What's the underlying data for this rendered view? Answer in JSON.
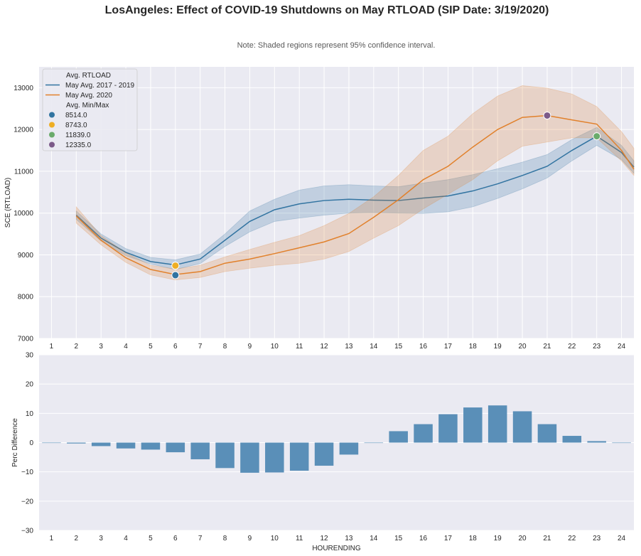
{
  "title": "LosAngeles: Effect of COVID-19 Shutdowns on May RTLOAD (SIP Date: 3/19/2020)",
  "subtitle": "Note: Shaded regions represent 95% confidence interval.",
  "colors": {
    "background": "#eaeaf2",
    "grid": "#ffffff",
    "series_2017_2019": "#3274a1",
    "series_2020": "#e1812c",
    "bars": "#5a8fb8",
    "minmax": [
      "#3274a1",
      "#eeae24",
      "#6aab6b",
      "#7c5a89"
    ]
  },
  "chart_data": [
    {
      "type": "line",
      "title": "",
      "xlabel": "",
      "ylabel": "SCE (RTLOAD)",
      "x_ticks": [
        1,
        2,
        3,
        4,
        5,
        6,
        7,
        8,
        9,
        10,
        11,
        12,
        13,
        14,
        15,
        16,
        17,
        18,
        19,
        20,
        21,
        22,
        23,
        24
      ],
      "y_ticks": [
        7000,
        8000,
        9000,
        10000,
        11000,
        12000,
        13000
      ],
      "xlim": [
        0.5,
        24.5
      ],
      "ylim": [
        7000,
        13500
      ],
      "legend_location": "top-left",
      "legend": {
        "line_title": "Avg. RTLOAD",
        "point_title": "Avg. Min/Max"
      },
      "series": [
        {
          "name": "May Avg. 2017 - 2019",
          "x": [
            2,
            3,
            4,
            5,
            6,
            7,
            8,
            9,
            10,
            11,
            12,
            13,
            14,
            15,
            16,
            17,
            18,
            19,
            20,
            21,
            22,
            23,
            24,
            24.5
          ],
          "values": [
            9950,
            9400,
            9060,
            8840,
            8760,
            8900,
            9350,
            9800,
            10080,
            10220,
            10300,
            10330,
            10310,
            10300,
            10360,
            10410,
            10530,
            10700,
            10900,
            11120,
            11500,
            11840,
            11450,
            11100
          ],
          "ci_lower": [
            9850,
            9330,
            8980,
            8780,
            8650,
            8790,
            9200,
            9550,
            9800,
            9880,
            9950,
            10000,
            10010,
            10000,
            9990,
            10030,
            10150,
            10350,
            10580,
            10840,
            11250,
            11620,
            11280,
            10950
          ],
          "ci_upper": [
            10050,
            9500,
            9150,
            8940,
            8880,
            9020,
            9500,
            10050,
            10330,
            10550,
            10650,
            10680,
            10650,
            10630,
            10720,
            10800,
            10920,
            11060,
            11220,
            11400,
            11760,
            12050,
            11620,
            11250
          ]
        },
        {
          "name": "May Avg. 2020",
          "x": [
            2,
            3,
            4,
            5,
            6,
            7,
            8,
            9,
            10,
            11,
            12,
            13,
            14,
            15,
            16,
            17,
            18,
            19,
            20,
            21,
            22,
            23,
            24,
            24.5
          ],
          "values": [
            9930,
            9350,
            8930,
            8650,
            8530,
            8600,
            8800,
            8900,
            9030,
            9170,
            9310,
            9510,
            9900,
            10320,
            10800,
            11120,
            11580,
            12000,
            12290,
            12335,
            12230,
            12130,
            11500,
            11050
          ],
          "ci_lower": [
            9760,
            9240,
            8820,
            8520,
            8400,
            8460,
            8600,
            8680,
            8750,
            8800,
            8900,
            9080,
            9400,
            9700,
            10100,
            10450,
            10800,
            11250,
            11600,
            11700,
            11800,
            11800,
            11250,
            10900
          ],
          "ci_upper": [
            10150,
            9460,
            9050,
            8750,
            8660,
            8750,
            8950,
            9130,
            9300,
            9460,
            9700,
            9990,
            10390,
            10900,
            11500,
            11840,
            12380,
            12800,
            13050,
            12990,
            12850,
            12550,
            11950,
            11550
          ]
        }
      ],
      "min_max_points": [
        {
          "label": "8514.0",
          "x": 6,
          "y": 8514
        },
        {
          "label": "8743.0",
          "x": 6,
          "y": 8743
        },
        {
          "label": "11839.0",
          "x": 23,
          "y": 11839
        },
        {
          "label": "12335.0",
          "x": 21,
          "y": 12335
        }
      ]
    },
    {
      "type": "bar",
      "title": "",
      "xlabel": "HOURENDING",
      "ylabel": "Perc Difference",
      "categories": [
        1,
        2,
        3,
        4,
        5,
        6,
        7,
        8,
        9,
        10,
        11,
        12,
        13,
        14,
        15,
        16,
        17,
        18,
        19,
        20,
        21,
        22,
        23,
        24
      ],
      "values": [
        0,
        -0.3,
        -1.2,
        -2,
        -2.4,
        -3.3,
        -5.7,
        -8.7,
        -10.3,
        -10.2,
        -9.6,
        -7.9,
        -4.1,
        0,
        3.9,
        6.3,
        9.7,
        12,
        12.7,
        10.7,
        6.3,
        2.3,
        0.5,
        0
      ],
      "y_ticks": [
        -30,
        -20,
        -10,
        0,
        10,
        20,
        30
      ],
      "ylim": [
        -30,
        30
      ]
    }
  ]
}
